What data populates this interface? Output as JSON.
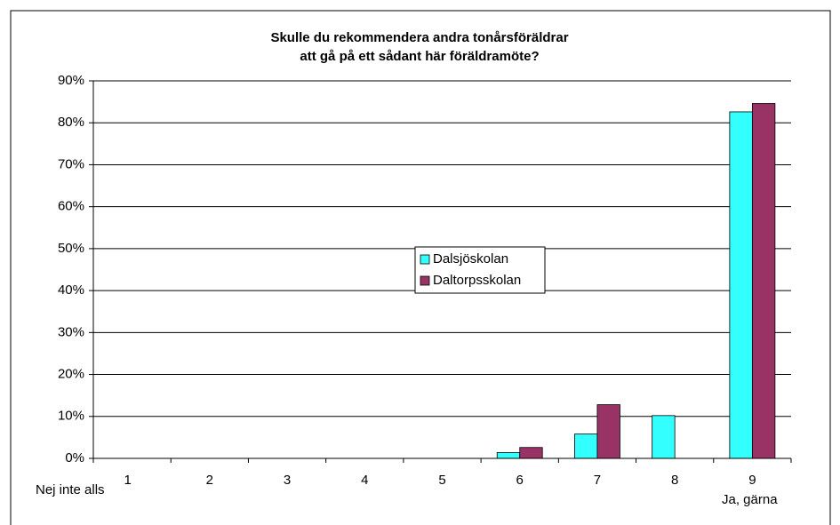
{
  "chart_data": {
    "type": "bar",
    "title": [
      "Skulle du rekommendera andra tonårsföräldrar",
      "att gå på ett sådant här föräldramöte?"
    ],
    "categories": [
      "1",
      "2",
      "3",
      "4",
      "5",
      "6",
      "7",
      "8",
      "9"
    ],
    "annotations": [
      "Nej inte alls",
      "Ja, gärna"
    ],
    "series": [
      {
        "name": "Dalsjöskolan",
        "color": "#33ffff",
        "values": [
          0,
          0,
          0,
          0,
          0,
          1.4,
          5.8,
          10.2,
          82.6
        ]
      },
      {
        "name": "Daltorpsskolan",
        "color": "#993366",
        "values": [
          0,
          0,
          0,
          0,
          0,
          2.6,
          12.8,
          0,
          84.6
        ]
      }
    ],
    "ylim": [
      0,
      90
    ],
    "yticks": [
      {
        "value": 0,
        "label": "0%"
      },
      {
        "value": 10,
        "label": "10%"
      },
      {
        "value": 20,
        "label": "20%"
      },
      {
        "value": 30,
        "label": "30%"
      },
      {
        "value": 40,
        "label": "40%"
      },
      {
        "value": 50,
        "label": "50%"
      },
      {
        "value": 60,
        "label": "60%"
      },
      {
        "value": 70,
        "label": "70%"
      },
      {
        "value": 80,
        "label": "80%"
      },
      {
        "value": 90,
        "label": "90%"
      }
    ],
    "grid": true,
    "legend": "center"
  }
}
